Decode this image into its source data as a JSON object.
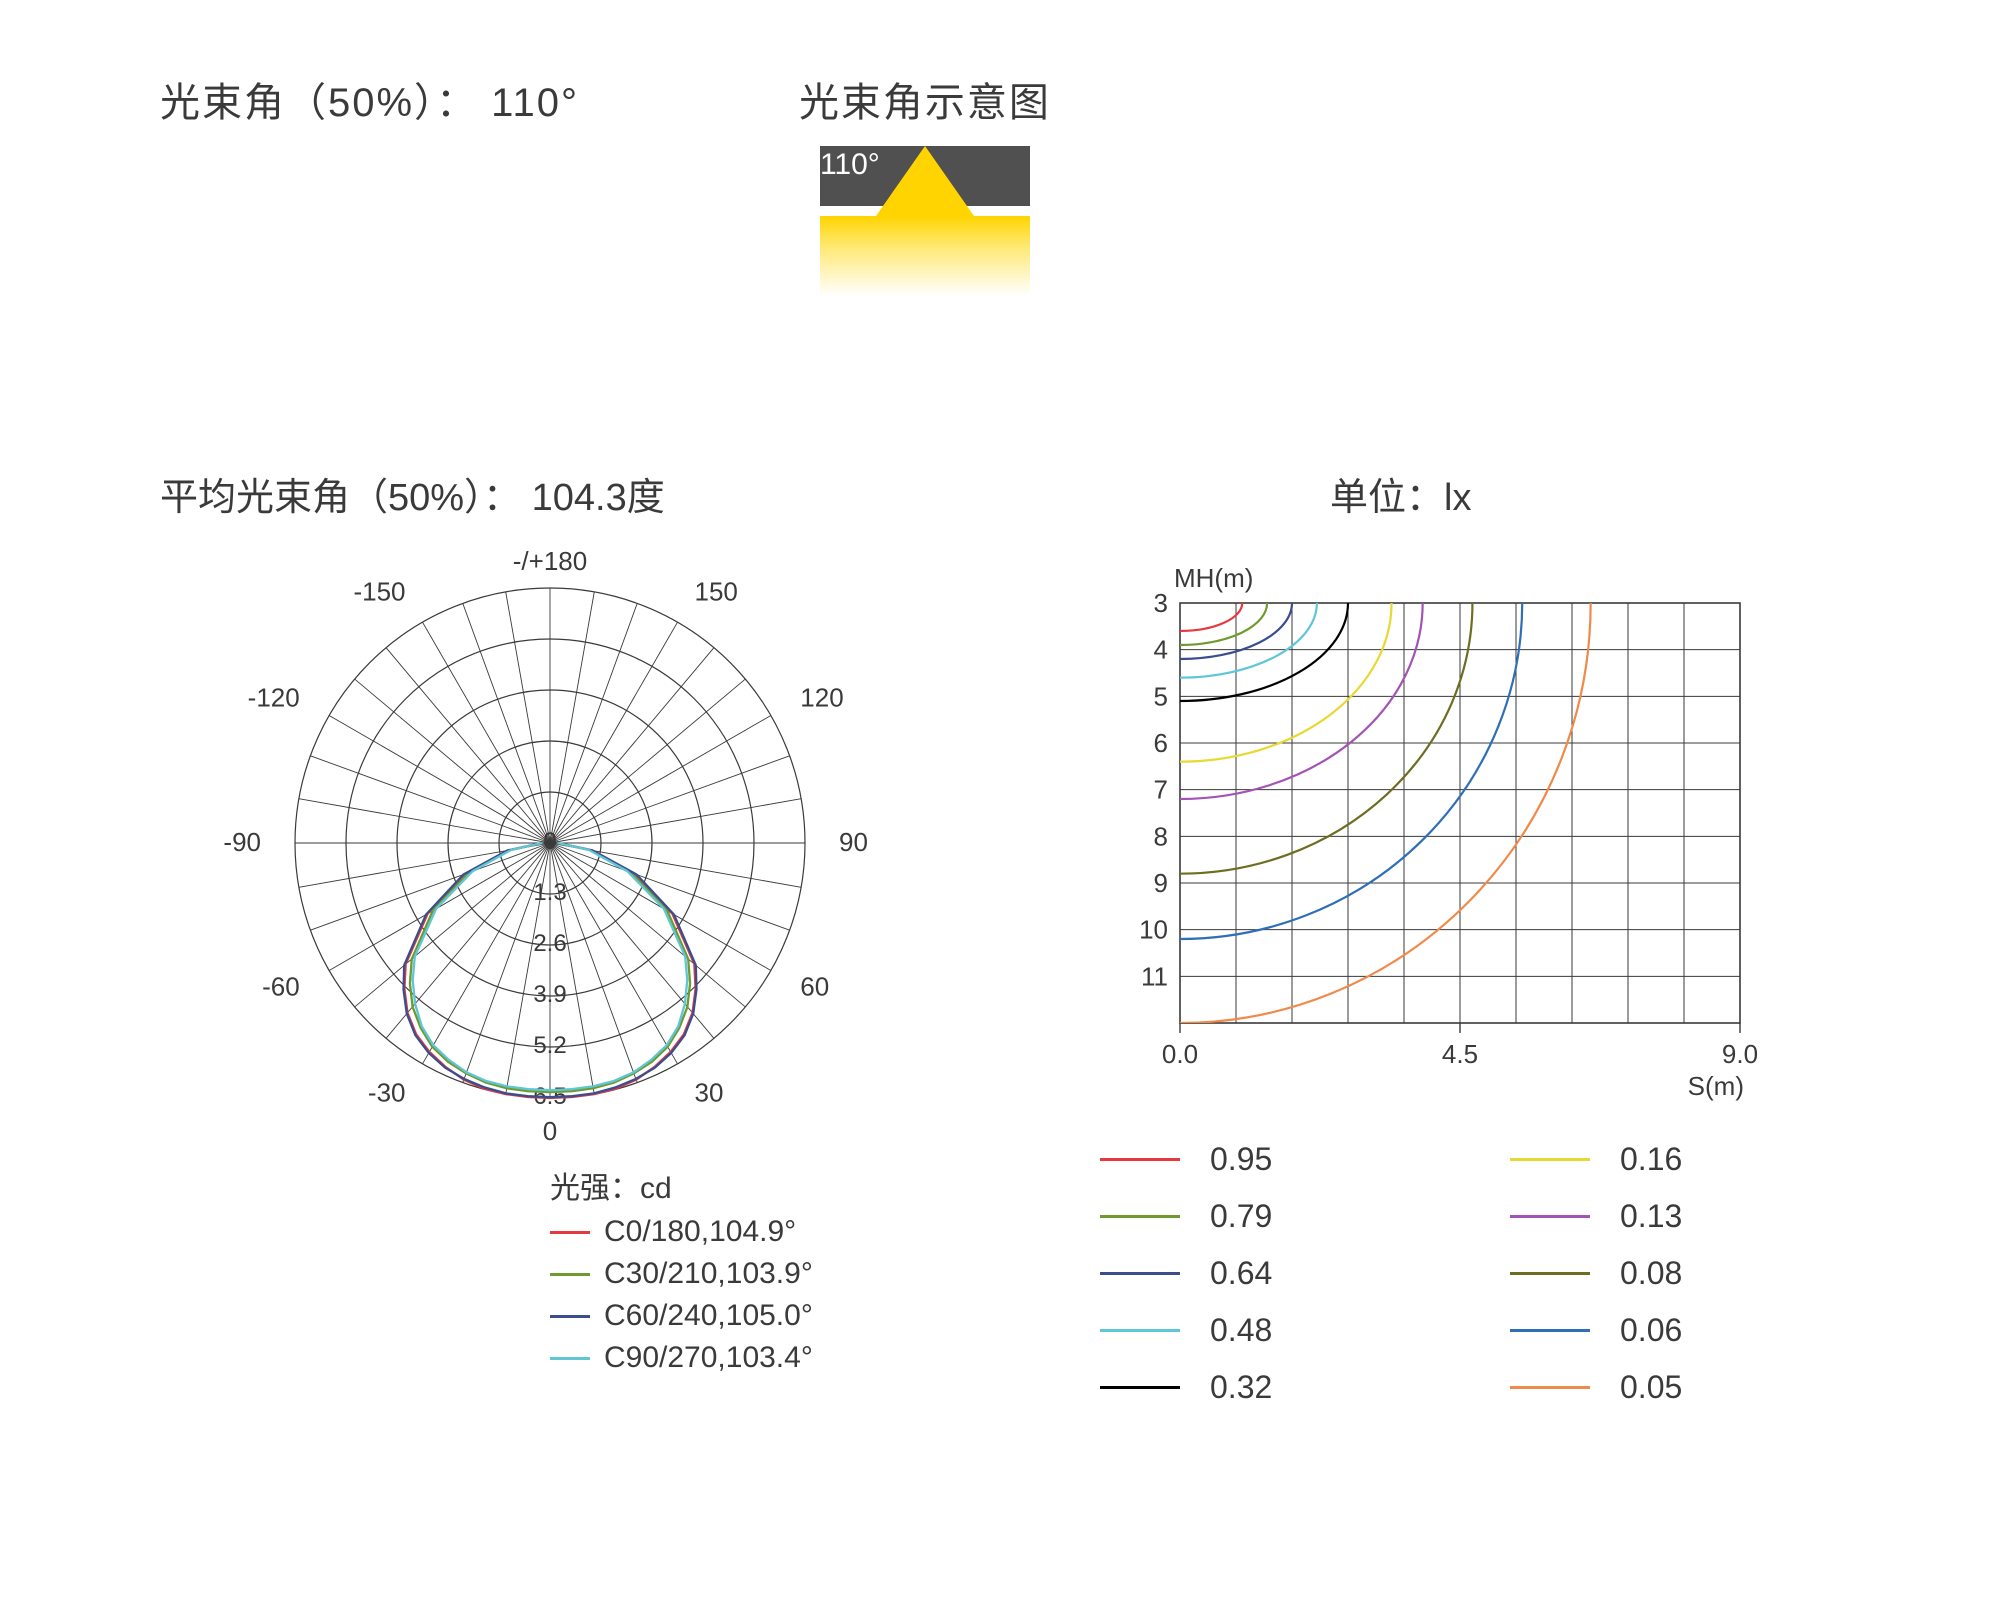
{
  "colors": {
    "text": "#3a3a3a",
    "background": "#ffffff",
    "grid": "#3a3a3a",
    "grid_light": "#555555",
    "beam_bg": "#505050",
    "beam_yellow": "#ffd400",
    "beam_label": "#ffffff"
  },
  "top": {
    "beam_angle_title": "光束角（50%）： 110°",
    "diagram_title": "光束角示意图",
    "diagram_angle_label": "110°"
  },
  "polar": {
    "title": "平均光束角（50%）： 104.3度",
    "top_label": "-/+180",
    "angle_labels": [
      {
        "deg": 180,
        "text": ""
      },
      {
        "deg": 150,
        "text": "150"
      },
      {
        "deg": 120,
        "text": "120"
      },
      {
        "deg": 90,
        "text": "90"
      },
      {
        "deg": 60,
        "text": "60"
      },
      {
        "deg": 30,
        "text": "30"
      },
      {
        "deg": 0,
        "text": "0"
      },
      {
        "deg": -30,
        "text": "-30"
      },
      {
        "deg": -60,
        "text": "-60"
      },
      {
        "deg": -90,
        "text": "-90"
      },
      {
        "deg": -120,
        "text": "-120"
      },
      {
        "deg": -150,
        "text": "-150"
      }
    ],
    "r_max": 6.5,
    "r_rings": [
      1.3,
      2.6,
      3.9,
      5.2,
      6.5
    ],
    "ring_labels": [
      "0",
      "1.3",
      "2.6",
      "3.9",
      "5.2",
      "6.5"
    ],
    "legend_title": "光强：cd",
    "series": [
      {
        "label": "C0/180,104.9°",
        "color": "#e6393f"
      },
      {
        "label": "C30/210,103.9°",
        "color": "#6e9a2e"
      },
      {
        "label": "C60/240,105.0°",
        "color": "#3a4d8f"
      },
      {
        "label": "C90/270,103.4°",
        "color": "#5fc6d6"
      }
    ],
    "curve_samples_deg": [
      -90,
      -80,
      -70,
      -60,
      -50,
      -45,
      -40,
      -35,
      -30,
      -25,
      -20,
      -15,
      -10,
      -5,
      0,
      5,
      10,
      15,
      20,
      25,
      30,
      35,
      40,
      45,
      50,
      60,
      70,
      80,
      90
    ],
    "curves": {
      "c0": [
        0.2,
        1.1,
        2.3,
        3.6,
        4.8,
        5.25,
        5.65,
        5.95,
        6.15,
        6.3,
        6.42,
        6.48,
        6.5,
        6.5,
        6.5,
        6.5,
        6.5,
        6.48,
        6.42,
        6.3,
        6.15,
        5.95,
        5.65,
        5.25,
        4.8,
        3.6,
        2.3,
        1.1,
        0.2
      ],
      "c30": [
        0.2,
        1.05,
        2.2,
        3.45,
        4.6,
        5.05,
        5.45,
        5.75,
        6.0,
        6.15,
        6.25,
        6.32,
        6.35,
        6.35,
        6.35,
        6.35,
        6.35,
        6.32,
        6.25,
        6.15,
        6.0,
        5.75,
        5.45,
        5.05,
        4.6,
        3.45,
        2.2,
        1.05,
        0.2
      ],
      "c60": [
        0.2,
        1.1,
        2.35,
        3.65,
        4.85,
        5.28,
        5.68,
        5.98,
        6.18,
        6.32,
        6.4,
        6.45,
        6.48,
        6.48,
        6.48,
        6.48,
        6.48,
        6.45,
        6.4,
        6.32,
        6.18,
        5.98,
        5.68,
        5.28,
        4.85,
        3.65,
        2.35,
        1.1,
        0.2
      ],
      "c90": [
        0.2,
        1.0,
        2.1,
        3.35,
        4.5,
        4.95,
        5.35,
        5.7,
        5.95,
        6.1,
        6.22,
        6.28,
        6.3,
        6.3,
        6.3,
        6.3,
        6.3,
        6.28,
        6.22,
        6.1,
        5.95,
        5.7,
        5.35,
        4.95,
        4.5,
        3.35,
        2.1,
        1.0,
        0.2
      ]
    }
  },
  "iso": {
    "title": "单位：lx",
    "y_label": "MH(m)",
    "x_label": "S(m)",
    "x_ticks": [
      "0.0",
      "4.5",
      "9.0"
    ],
    "y_ticks": [
      "3",
      "4",
      "5",
      "6",
      "7",
      "8",
      "9",
      "10",
      "11"
    ],
    "x_max": 9.0,
    "y_min": 3,
    "y_max": 12,
    "series": [
      {
        "value": "0.95",
        "color": "#e6393f",
        "rx": 1.0,
        "ry": 0.6
      },
      {
        "value": "0.79",
        "color": "#6e9a2e",
        "rx": 1.4,
        "ry": 0.9
      },
      {
        "value": "0.64",
        "color": "#3a4d8f",
        "rx": 1.8,
        "ry": 1.2
      },
      {
        "value": "0.48",
        "color": "#5fc6d6",
        "rx": 2.2,
        "ry": 1.6
      },
      {
        "value": "0.32",
        "color": "#000000",
        "rx": 2.7,
        "ry": 2.1
      },
      {
        "value": "0.16",
        "color": "#e8d832",
        "rx": 3.4,
        "ry": 3.4
      },
      {
        "value": "0.13",
        "color": "#a352b5",
        "rx": 3.9,
        "ry": 4.2
      },
      {
        "value": "0.08",
        "color": "#6d6e22",
        "rx": 4.7,
        "ry": 5.8
      },
      {
        "value": "0.06",
        "color": "#2f6fb5",
        "rx": 5.5,
        "ry": 7.2
      },
      {
        "value": "0.05",
        "color": "#f08a4a",
        "rx": 6.6,
        "ry": 9.0
      }
    ]
  }
}
